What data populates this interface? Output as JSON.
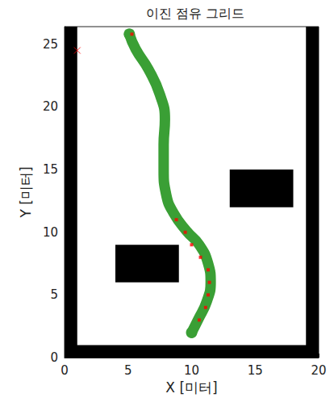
{
  "chart_data": {
    "type": "occupancy_grid",
    "title": "이진 점유 그리드",
    "x_label": "X [미터]",
    "y_label": "Y [미터]",
    "xlim": [
      0,
      20
    ],
    "xticks": [
      0,
      5,
      10,
      15,
      20
    ],
    "ylim": [
      0,
      26.4
    ],
    "yticks": [
      0,
      5,
      10,
      15,
      20,
      25
    ],
    "grid": false,
    "series": [
      {
        "type": "rect",
        "color": "#000000",
        "x": [
          0,
          1
        ],
        "values": [
          0,
          26.4
        ]
      },
      {
        "type": "rect",
        "color": "#000000",
        "x": [
          19,
          20
        ],
        "values": [
          0,
          26.4
        ]
      },
      {
        "type": "rect",
        "color": "#000000",
        "x": [
          0,
          20
        ],
        "values": [
          0,
          1
        ]
      },
      {
        "type": "rect",
        "color": "#000000",
        "x": [
          4,
          9
        ],
        "values": [
          6,
          9
        ]
      },
      {
        "type": "rect",
        "color": "#000000",
        "x": [
          13,
          18
        ],
        "values": [
          12,
          15
        ]
      },
      {
        "type": "line",
        "color": "#3a9f35",
        "x": [
          10,
          10.5,
          11.2,
          11.5,
          11.3,
          10.6,
          9.6,
          8.6,
          8.0,
          7.8,
          7.8,
          7.9,
          7.5,
          6.6,
          5.6,
          5.1
        ],
        "values": [
          2,
          3,
          4.5,
          6,
          7.5,
          9,
          10.1,
          11.5,
          13,
          15,
          17,
          19,
          21,
          23,
          24.6,
          25.8
        ]
      },
      {
        "type": "scatter",
        "marker": "square",
        "color": "#ff0000",
        "x": [
          10.6,
          11.1,
          11.3,
          11.4,
          11.3,
          10.7,
          10.0,
          9.5,
          8.8,
          5.3
        ],
        "values": [
          3,
          4,
          5,
          6,
          7,
          8,
          9,
          10,
          11,
          25.8
        ]
      },
      {
        "type": "scatter",
        "marker": "x",
        "color": "#ff0000",
        "x": [
          1
        ],
        "values": [
          24.5
        ]
      }
    ]
  }
}
